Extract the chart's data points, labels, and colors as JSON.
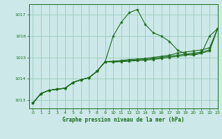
{
  "title": "Graphe pression niveau de la mer (hPa)",
  "background_color": "#cce8e8",
  "grid_color": "#99ccbb",
  "line_color": "#1a6b1a",
  "marker_color": "#1a6b1a",
  "xlim": [
    -0.5,
    23
  ],
  "ylim": [
    1012.6,
    1017.5
  ],
  "yticks": [
    1013,
    1014,
    1015,
    1016,
    1017
  ],
  "xticks": [
    0,
    1,
    2,
    3,
    4,
    5,
    6,
    7,
    8,
    9,
    10,
    11,
    12,
    13,
    14,
    15,
    16,
    17,
    18,
    19,
    20,
    21,
    22,
    23
  ],
  "series": [
    [
      1012.85,
      1013.3,
      1013.45,
      1013.5,
      1013.55,
      1013.82,
      1013.95,
      1014.05,
      1014.35,
      1014.8,
      1016.0,
      1016.65,
      1017.1,
      1017.25,
      1016.55,
      1016.15,
      1016.0,
      1015.75,
      1015.35,
      1015.15,
      1015.1,
      1015.2,
      1016.0,
      1016.35
    ],
    [
      1012.85,
      1013.3,
      1013.45,
      1013.5,
      1013.55,
      1013.82,
      1013.95,
      1014.05,
      1014.35,
      1014.8,
      1014.82,
      1014.85,
      1014.9,
      1014.92,
      1014.95,
      1015.0,
      1015.05,
      1015.1,
      1015.2,
      1015.25,
      1015.3,
      1015.35,
      1015.45,
      1016.35
    ],
    [
      1012.85,
      1013.3,
      1013.45,
      1013.5,
      1013.55,
      1013.82,
      1013.95,
      1014.05,
      1014.35,
      1014.8,
      1014.8,
      1014.82,
      1014.85,
      1014.88,
      1014.9,
      1014.95,
      1015.0,
      1015.05,
      1015.1,
      1015.15,
      1015.2,
      1015.25,
      1015.35,
      1016.35
    ],
    [
      1012.85,
      1013.3,
      1013.45,
      1013.5,
      1013.55,
      1013.82,
      1013.95,
      1014.05,
      1014.35,
      1014.8,
      1014.78,
      1014.8,
      1014.82,
      1014.85,
      1014.87,
      1014.9,
      1014.95,
      1015.0,
      1015.05,
      1015.1,
      1015.15,
      1015.2,
      1015.3,
      1016.35
    ]
  ]
}
